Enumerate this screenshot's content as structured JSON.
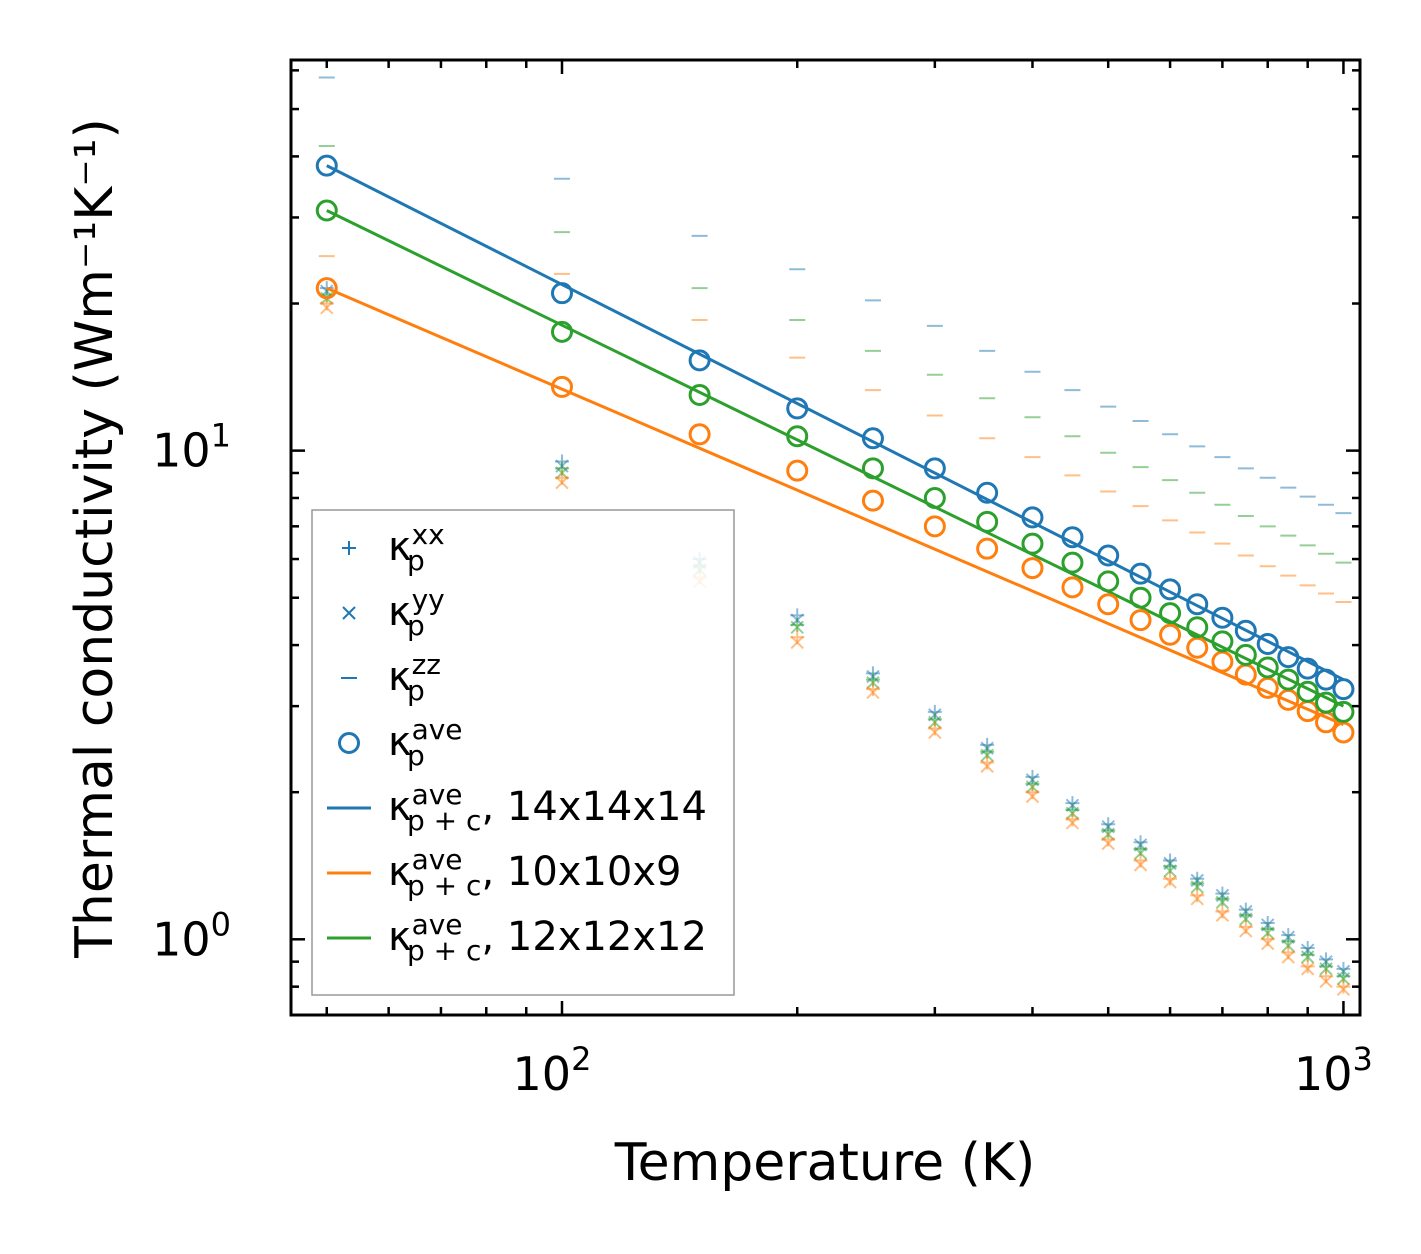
{
  "chart_data": {
    "type": "scatter",
    "xscale": "log",
    "yscale": "log",
    "xlabel": "Temperature (K)",
    "ylabel": "Thermal conductivity (Wm⁻¹K⁻¹)",
    "xlim": [
      45,
      1050
    ],
    "ylim": [
      0.7,
      63
    ],
    "x_ticks": [
      {
        "value": 100,
        "base": "10",
        "exp": "2"
      },
      {
        "value": 1000,
        "base": "10",
        "exp": "3"
      }
    ],
    "y_ticks": [
      {
        "value": 1,
        "base": "10",
        "exp": "0"
      },
      {
        "value": 10,
        "base": "10",
        "exp": "1"
      }
    ],
    "temperatures": [
      50,
      100,
      150,
      200,
      250,
      300,
      350,
      400,
      450,
      500,
      550,
      600,
      650,
      700,
      750,
      800,
      850,
      900,
      950,
      1000
    ],
    "colors": {
      "blue": "#1f77b4",
      "orange": "#ff7f0e",
      "green": "#2ca02c"
    },
    "series": [
      {
        "name": "kave_14",
        "grid": "14x14x14",
        "color": "blue",
        "marker": "o",
        "values": [
          38.3,
          21.0,
          15.3,
          12.2,
          10.6,
          9.2,
          8.2,
          7.3,
          6.65,
          6.1,
          5.6,
          5.2,
          4.85,
          4.55,
          4.28,
          4.02,
          3.78,
          3.58,
          3.4,
          3.25
        ]
      },
      {
        "name": "kave_10",
        "grid": "10x10x9",
        "color": "orange",
        "marker": "o",
        "values": [
          21.5,
          13.5,
          10.8,
          9.1,
          7.9,
          7.0,
          6.3,
          5.75,
          5.25,
          4.85,
          4.5,
          4.2,
          3.95,
          3.7,
          3.48,
          3.27,
          3.09,
          2.93,
          2.78,
          2.65
        ]
      },
      {
        "name": "kave_12",
        "grid": "12x12x12",
        "color": "green",
        "marker": "o",
        "values": [
          31.0,
          17.5,
          13.0,
          10.7,
          9.2,
          8.0,
          7.15,
          6.45,
          5.9,
          5.4,
          5.0,
          4.65,
          4.35,
          4.07,
          3.82,
          3.6,
          3.4,
          3.21,
          3.05,
          2.92
        ]
      },
      {
        "name": "kxx_blue",
        "color": "blue",
        "marker": "+",
        "values": [
          21.5,
          9.5,
          6.0,
          4.6,
          3.5,
          2.92,
          2.5,
          2.15,
          1.9,
          1.72,
          1.58,
          1.45,
          1.33,
          1.24,
          1.15,
          1.08,
          1.02,
          0.96,
          0.91,
          0.87
        ]
      },
      {
        "name": "kyy_blue",
        "color": "blue",
        "marker": "x",
        "values": [
          21.2,
          9.3,
          5.9,
          4.5,
          3.45,
          2.88,
          2.46,
          2.12,
          1.88,
          1.7,
          1.56,
          1.43,
          1.32,
          1.23,
          1.14,
          1.07,
          1.01,
          0.95,
          0.9,
          0.86
        ]
      },
      {
        "name": "kxx_green",
        "color": "green",
        "marker": "+",
        "values": [
          20.8,
          9.2,
          5.8,
          4.4,
          3.4,
          2.82,
          2.42,
          2.08,
          1.84,
          1.67,
          1.53,
          1.41,
          1.3,
          1.21,
          1.12,
          1.05,
          0.99,
          0.93,
          0.88,
          0.84
        ]
      },
      {
        "name": "kyy_green",
        "color": "green",
        "marker": "x",
        "values": [
          20.5,
          9.0,
          5.7,
          4.35,
          3.35,
          2.78,
          2.38,
          2.05,
          1.81,
          1.64,
          1.5,
          1.38,
          1.28,
          1.19,
          1.1,
          1.03,
          0.97,
          0.92,
          0.87,
          0.83
        ]
      },
      {
        "name": "kxx_orange",
        "color": "orange",
        "marker": "+",
        "values": [
          20.0,
          8.8,
          5.5,
          4.15,
          3.25,
          2.7,
          2.3,
          2.0,
          1.76,
          1.6,
          1.45,
          1.33,
          1.23,
          1.14,
          1.06,
          1.0,
          0.94,
          0.88,
          0.84,
          0.8
        ]
      },
      {
        "name": "kyy_orange",
        "color": "orange",
        "marker": "x",
        "values": [
          19.6,
          8.6,
          5.4,
          4.05,
          3.2,
          2.65,
          2.26,
          1.96,
          1.73,
          1.57,
          1.42,
          1.31,
          1.21,
          1.12,
          1.04,
          0.98,
          0.92,
          0.87,
          0.82,
          0.79
        ]
      },
      {
        "name": "kzz_blue",
        "color": "blue",
        "marker": "_",
        "values": [
          58.0,
          36.0,
          27.5,
          23.5,
          20.3,
          18.0,
          16.0,
          14.5,
          13.3,
          12.3,
          11.5,
          10.8,
          10.2,
          9.7,
          9.2,
          8.8,
          8.4,
          8.05,
          7.75,
          7.45
        ]
      },
      {
        "name": "kzz_green",
        "color": "green",
        "marker": "_",
        "values": [
          42.0,
          28.0,
          21.5,
          18.5,
          16.0,
          14.3,
          12.8,
          11.7,
          10.7,
          9.9,
          9.25,
          8.7,
          8.2,
          7.75,
          7.35,
          7.0,
          6.7,
          6.4,
          6.15,
          5.9
        ]
      },
      {
        "name": "kzz_orange",
        "color": "orange",
        "marker": "_",
        "values": [
          25.0,
          23.0,
          18.5,
          15.5,
          13.3,
          11.8,
          10.6,
          9.7,
          8.9,
          8.25,
          7.7,
          7.2,
          6.8,
          6.45,
          6.1,
          5.8,
          5.55,
          5.3,
          5.1,
          4.9
        ]
      }
    ],
    "fit_lines": [
      {
        "color": "blue",
        "from": [
          50,
          38.3
        ],
        "to": [
          1000,
          3.4
        ]
      },
      {
        "color": "orange",
        "from": [
          50,
          21.5
        ],
        "to": [
          1000,
          2.75
        ]
      },
      {
        "color": "green",
        "from": [
          50,
          31.0
        ],
        "to": [
          1000,
          3.0
        ]
      }
    ],
    "legend": {
      "placement": "lower-left",
      "entries": [
        {
          "marker": "+",
          "color": "blue",
          "base": "κ",
          "sup": "xx",
          "sub": "p",
          "suffix": ""
        },
        {
          "marker": "x",
          "color": "blue",
          "base": "κ",
          "sup": "yy",
          "sub": "p",
          "suffix": ""
        },
        {
          "marker": "_",
          "color": "blue",
          "base": "κ",
          "sup": "zz",
          "sub": "p",
          "suffix": ""
        },
        {
          "marker": "o",
          "color": "blue",
          "base": "κ",
          "sup": "ave",
          "sub": "p",
          "suffix": ""
        },
        {
          "marker": "line",
          "color": "blue",
          "base": "κ",
          "sup": "ave",
          "sub": "p + c",
          "suffix": ", 14x14x14"
        },
        {
          "marker": "line",
          "color": "orange",
          "base": "κ",
          "sup": "ave",
          "sub": "p + c",
          "suffix": ", 10x10x9"
        },
        {
          "marker": "line",
          "color": "green",
          "base": "κ",
          "sup": "ave",
          "sub": "p + c",
          "suffix": ", 12x12x12"
        }
      ]
    }
  }
}
